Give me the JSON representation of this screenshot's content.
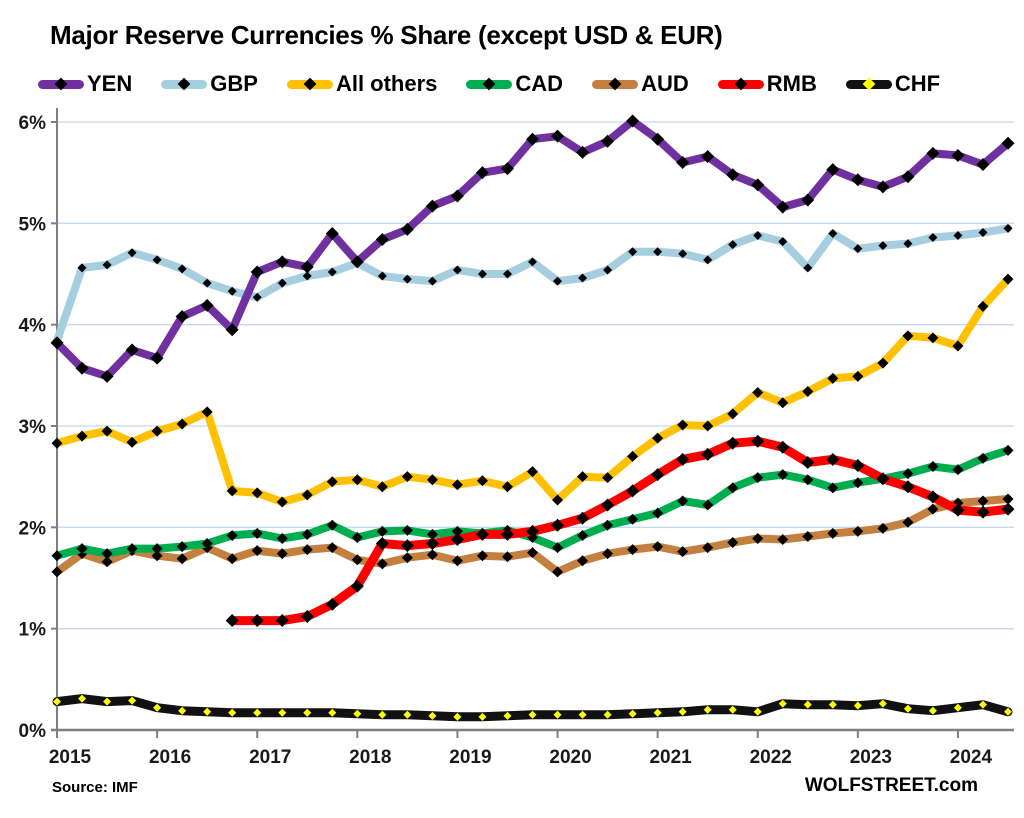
{
  "title": "Major Reserve Currencies % Share (except USD & EUR)",
  "footer": {
    "source": "Source: IMF",
    "brand": "WOLFSTREET.com"
  },
  "chart_data": {
    "type": "line",
    "title": "Major Reserve Currencies % Share (except USD & EUR)",
    "legend_position": "top",
    "grid": true,
    "gridline_color": "#C5D9F1",
    "axis_color": "#7F7F7F",
    "x_axis": {
      "start": "2015 Q1",
      "end": "2024 Q3",
      "frequency": "quarterly",
      "points": 39,
      "tick_labels": [
        "2015",
        "2016",
        "2017",
        "2018",
        "2019",
        "2020",
        "2021",
        "2022",
        "2023",
        "2024"
      ]
    },
    "y_axis": {
      "min": 0,
      "max": 6,
      "unit": "%",
      "tick_labels": [
        "0%",
        "1%",
        "2%",
        "3%",
        "4%",
        "5%",
        "6%"
      ]
    },
    "series": [
      {
        "name": "YEN",
        "color": "#7030A0",
        "marker": "#000000",
        "values": [
          3.82,
          3.57,
          3.49,
          3.75,
          3.67,
          4.08,
          4.19,
          3.95,
          4.52,
          4.62,
          4.57,
          4.9,
          4.62,
          4.84,
          4.94,
          5.17,
          5.27,
          5.5,
          5.54,
          5.83,
          5.86,
          5.7,
          5.81,
          6.01,
          5.83,
          5.6,
          5.66,
          5.48,
          5.38,
          5.16,
          5.23,
          5.53,
          5.43,
          5.36,
          5.46,
          5.69,
          5.67,
          5.58,
          5.79
        ]
      },
      {
        "name": "GBP",
        "color": "#A5CEE0",
        "marker": "#000000",
        "values": [
          3.84,
          4.56,
          4.59,
          4.71,
          4.64,
          4.55,
          4.41,
          4.33,
          4.27,
          4.41,
          4.48,
          4.52,
          4.61,
          4.48,
          4.45,
          4.43,
          4.54,
          4.5,
          4.5,
          4.62,
          4.43,
          4.46,
          4.54,
          4.72,
          4.72,
          4.7,
          4.64,
          4.79,
          4.88,
          4.82,
          4.56,
          4.9,
          4.75,
          4.78,
          4.8,
          4.86,
          4.88,
          4.91,
          4.95
        ]
      },
      {
        "name": "All others",
        "color": "#FFC000",
        "marker": "#000000",
        "values": [
          2.83,
          2.9,
          2.95,
          2.84,
          2.95,
          3.02,
          3.14,
          2.36,
          2.34,
          2.25,
          2.32,
          2.45,
          2.47,
          2.4,
          2.5,
          2.47,
          2.42,
          2.46,
          2.4,
          2.55,
          2.27,
          2.5,
          2.49,
          2.7,
          2.88,
          3.01,
          3.0,
          3.12,
          3.33,
          3.23,
          3.34,
          3.47,
          3.49,
          3.62,
          3.89,
          3.87,
          3.79,
          4.18,
          4.45
        ]
      },
      {
        "name": "CAD",
        "color": "#00AE50",
        "marker": "#000000",
        "values": [
          1.72,
          1.79,
          1.74,
          1.79,
          1.79,
          1.81,
          1.84,
          1.92,
          1.94,
          1.89,
          1.93,
          2.02,
          1.9,
          1.96,
          1.97,
          1.93,
          1.96,
          1.94,
          1.97,
          1.9,
          1.8,
          1.92,
          2.02,
          2.08,
          2.14,
          2.26,
          2.22,
          2.39,
          2.49,
          2.52,
          2.47,
          2.39,
          2.44,
          2.48,
          2.53,
          2.6,
          2.57,
          2.68,
          2.76
        ]
      },
      {
        "name": "AUD",
        "color": "#C4803E",
        "marker": "#000000",
        "values": [
          1.56,
          1.74,
          1.66,
          1.77,
          1.72,
          1.69,
          1.8,
          1.69,
          1.77,
          1.74,
          1.78,
          1.8,
          1.68,
          1.64,
          1.7,
          1.73,
          1.67,
          1.72,
          1.71,
          1.75,
          1.56,
          1.67,
          1.74,
          1.78,
          1.81,
          1.76,
          1.8,
          1.85,
          1.89,
          1.88,
          1.91,
          1.94,
          1.96,
          1.99,
          2.05,
          2.18,
          2.24,
          2.26,
          2.28
        ]
      },
      {
        "name": "RMB",
        "color": "#FE0000",
        "marker": "#000000",
        "values": [
          null,
          null,
          null,
          null,
          null,
          null,
          null,
          1.08,
          1.08,
          1.08,
          1.12,
          1.24,
          1.42,
          1.84,
          1.82,
          1.84,
          1.88,
          1.93,
          1.93,
          1.96,
          2.02,
          2.09,
          2.22,
          2.36,
          2.52,
          2.67,
          2.72,
          2.83,
          2.85,
          2.79,
          2.64,
          2.67,
          2.61,
          2.48,
          2.4,
          2.3,
          2.17,
          2.15,
          2.18
        ]
      },
      {
        "name": "CHF",
        "color": "#111111",
        "marker": "#FFFF00",
        "values": [
          0.28,
          0.31,
          0.28,
          0.29,
          0.22,
          0.19,
          0.18,
          0.17,
          0.17,
          0.17,
          0.17,
          0.17,
          0.16,
          0.15,
          0.15,
          0.14,
          0.13,
          0.13,
          0.14,
          0.15,
          0.15,
          0.15,
          0.15,
          0.16,
          0.17,
          0.18,
          0.2,
          0.2,
          0.18,
          0.26,
          0.25,
          0.25,
          0.24,
          0.26,
          0.21,
          0.19,
          0.22,
          0.25,
          0.18
        ]
      }
    ]
  }
}
